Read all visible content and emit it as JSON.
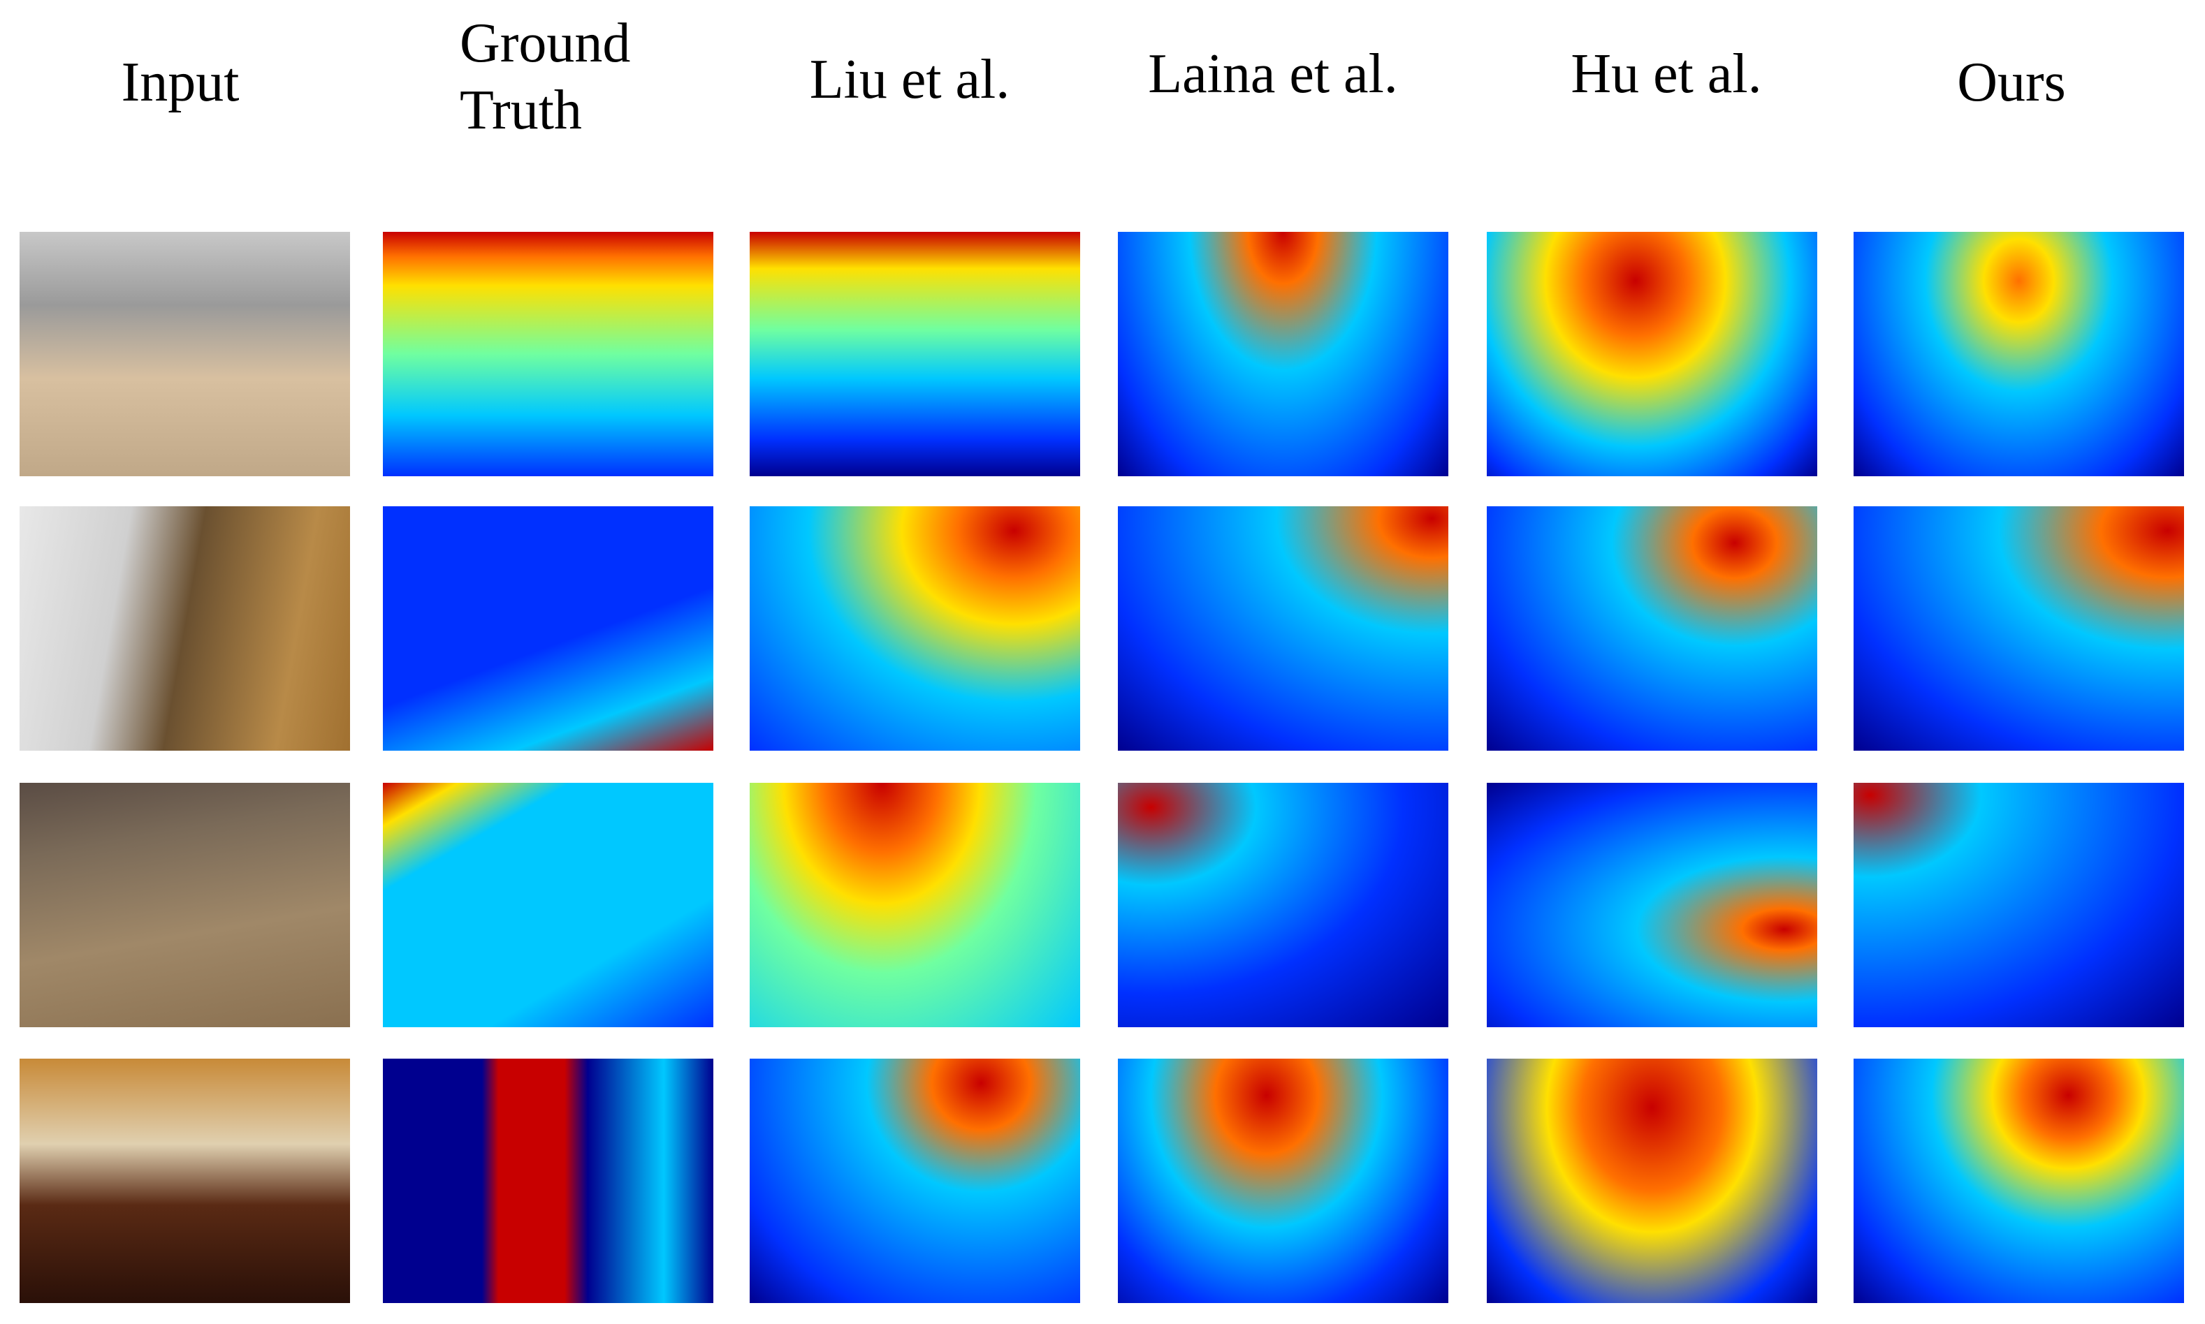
{
  "columns": [
    "Input",
    "Ground Truth",
    "Liu et al.",
    "Laina et al.",
    "Hu et al.",
    "Ours"
  ]
}
